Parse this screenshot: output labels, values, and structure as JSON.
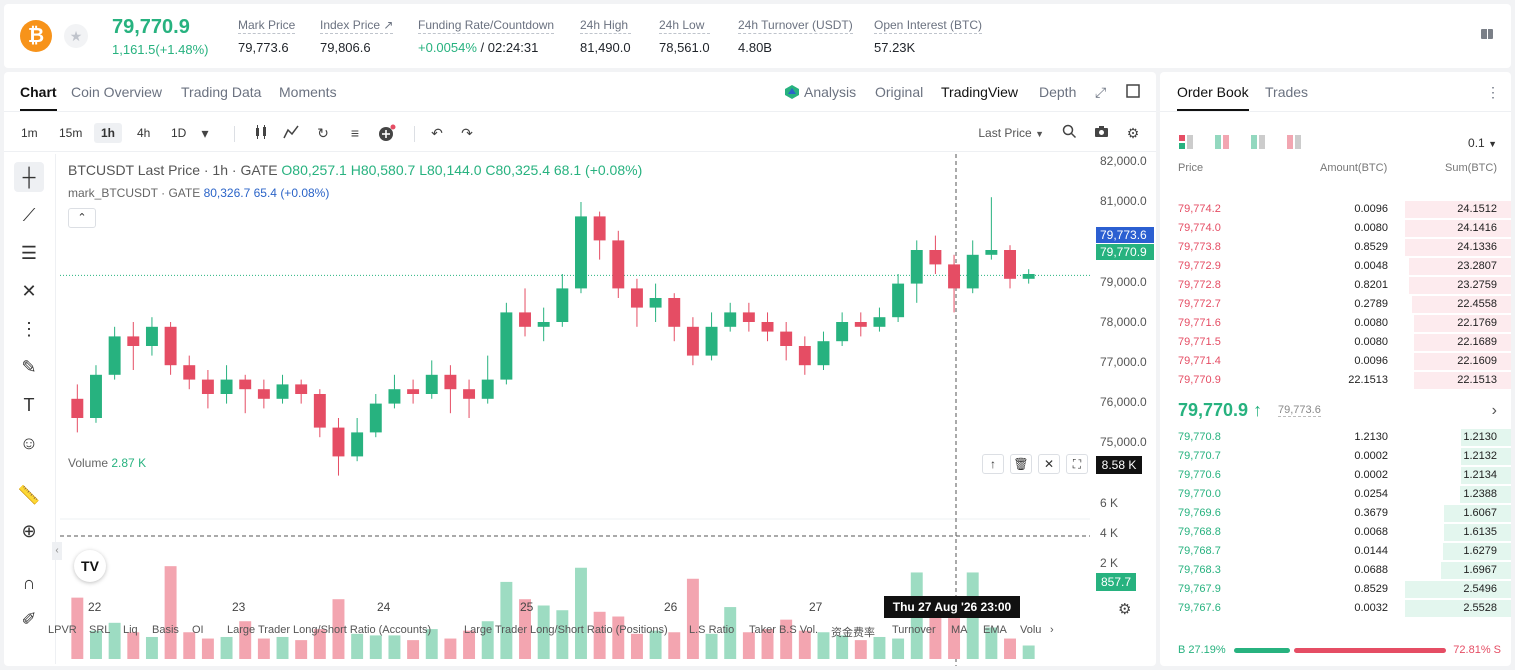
{
  "header": {
    "coin_icon": "bitcoin-icon",
    "last_price": "79,770.9",
    "change": "1,161.5(+1.48%)",
    "stats": [
      {
        "label": "Mark Price",
        "value": "79,773.6"
      },
      {
        "label": "Index Price ↗",
        "value": "79,806.6"
      },
      {
        "label": "Funding Rate/Countdown",
        "value_green": "+0.0054%",
        "value": " / 02:24:31"
      },
      {
        "label": "24h High",
        "value": "81,490.0"
      },
      {
        "label": "24h Low",
        "value": "78,561.0"
      },
      {
        "label": "24h Turnover (USDT)",
        "value": "4.80B"
      },
      {
        "label": "Open Interest (BTC)",
        "value": "57.23K"
      }
    ]
  },
  "chart_tabs": [
    "Chart",
    "Coin Overview",
    "Trading Data",
    "Moments"
  ],
  "view_modes": [
    "Analysis",
    "Original",
    "TradingView",
    "Depth"
  ],
  "timeframes": [
    "1m",
    "15m",
    "1h",
    "4h",
    "1D"
  ],
  "price_type": "Last Price",
  "legend": {
    "symbol": "BTCUSDT Last Price · 1h · GATE",
    "o": "O80,257.1",
    "h": "H80,580.7",
    "l": "L80,144.0",
    "c": "C80,325.4",
    "chg": "68.1 (+0.08%)",
    "mark": "mark_BTCUSDT · GATE",
    "mark_vals": "80,326.7  65.4 (+0.08%)"
  },
  "volume_legend": {
    "label": "Volume",
    "value": "2.87 K"
  },
  "price_axis": [
    "82,000.0",
    "81,000.0",
    "79,000.0",
    "78,000.0",
    "77,000.0",
    "76,000.0",
    "75,000.0"
  ],
  "volume_axis": [
    "6 K",
    "4 K",
    "2 K"
  ],
  "mark_tag": "79,773.6",
  "last_tag": "79,770.9",
  "vol_crosshair_tag": "8.58 K",
  "vol_current_tag": "857.7",
  "time_axis": [
    "22",
    "23",
    "24",
    "25",
    "26",
    "27"
  ],
  "crosshair_time": "Thu 27 Aug '26   23:00",
  "indicators": [
    "LPVR",
    "SRL",
    "Liq",
    "Basis",
    "OI",
    "Large Trader Long/Short Ratio (Accounts)",
    "Large Trader Long/Short Ratio (Positions)",
    "L.S Ratio",
    "Taker B.S Vol.",
    "资金费率",
    "Turnover",
    "MA",
    "EMA",
    "Volu"
  ],
  "chart_data": {
    "type": "candlestick",
    "ylim": [
      74800,
      82300
    ],
    "candles": [
      [
        77200,
        76800,
        77500,
        76500
      ],
      [
        76800,
        77700,
        77900,
        76700
      ],
      [
        77700,
        78500,
        78700,
        77600
      ],
      [
        78500,
        78300,
        78800,
        77800
      ],
      [
        78300,
        78700,
        78900,
        78100
      ],
      [
        78700,
        77900,
        78800,
        77700
      ],
      [
        77900,
        77600,
        78100,
        77400
      ],
      [
        77600,
        77300,
        77800,
        77000
      ],
      [
        77300,
        77600,
        77900,
        77100
      ],
      [
        77600,
        77400,
        77700,
        76900
      ],
      [
        77400,
        77200,
        77600,
        77000
      ],
      [
        77200,
        77500,
        77700,
        77100
      ],
      [
        77500,
        77300,
        77600,
        77100
      ],
      [
        77300,
        76600,
        77400,
        76400
      ],
      [
        76600,
        76000,
        76800,
        75600
      ],
      [
        76000,
        76500,
        76800,
        75900
      ],
      [
        76500,
        77100,
        77300,
        76400
      ],
      [
        77100,
        77400,
        77700,
        77000
      ],
      [
        77400,
        77300,
        77600,
        77100
      ],
      [
        77300,
        77700,
        78000,
        77200
      ],
      [
        77700,
        77400,
        77900,
        76900
      ],
      [
        77400,
        77200,
        77600,
        76800
      ],
      [
        77200,
        77600,
        78100,
        77100
      ],
      [
        77600,
        79000,
        79200,
        77500
      ],
      [
        79000,
        78700,
        79500,
        78500
      ],
      [
        78700,
        78800,
        79100,
        78400
      ],
      [
        78800,
        79500,
        79800,
        78700
      ],
      [
        79500,
        81000,
        81300,
        79400
      ],
      [
        81000,
        80500,
        81100,
        80100
      ],
      [
        80500,
        79500,
        80700,
        79300
      ],
      [
        79500,
        79100,
        79700,
        78700
      ],
      [
        79100,
        79300,
        79600,
        78800
      ],
      [
        79300,
        78700,
        79400,
        78400
      ],
      [
        78700,
        78100,
        78900,
        77900
      ],
      [
        78100,
        78700,
        79000,
        78000
      ],
      [
        78700,
        79000,
        79200,
        78600
      ],
      [
        79000,
        78800,
        79200,
        78600
      ],
      [
        78800,
        78600,
        79000,
        78400
      ],
      [
        78600,
        78300,
        78800,
        78000
      ],
      [
        78300,
        77900,
        78500,
        77700
      ],
      [
        77900,
        78400,
        78600,
        77800
      ],
      [
        78400,
        78800,
        79000,
        78300
      ],
      [
        78800,
        78700,
        79000,
        78500
      ],
      [
        78700,
        78900,
        79100,
        78600
      ],
      [
        78900,
        79600,
        79800,
        78800
      ],
      [
        79600,
        80300,
        80500,
        79200
      ],
      [
        80300,
        80000,
        80600,
        79800
      ],
      [
        80000,
        79500,
        80200,
        79000
      ],
      [
        79500,
        80200,
        80500,
        79400
      ],
      [
        80200,
        80300,
        81400,
        80100
      ],
      [
        80300,
        79700,
        80400,
        79500
      ],
      [
        79700,
        79800,
        79900,
        79600
      ]
    ],
    "volume": [
      3900,
      1800,
      2300,
      1700,
      1400,
      5900,
      1700,
      1300,
      1400,
      2400,
      1300,
      1400,
      1200,
      1900,
      3800,
      1600,
      1500,
      1500,
      1200,
      1900,
      1300,
      1800,
      2400,
      4900,
      3800,
      3400,
      3100,
      5800,
      3000,
      2700,
      1600,
      1800,
      1700,
      5100,
      1600,
      3300,
      1700,
      1900,
      2500,
      1800,
      1700,
      1500,
      1200,
      1400,
      1300,
      5500,
      3800,
      2600,
      5500,
      2000,
      1300,
      857.7
    ],
    "volume_ylim": [
      0,
      8580
    ]
  },
  "orderbook": {
    "tabs": [
      "Order Book",
      "Trades"
    ],
    "precision": "0.1",
    "headers": [
      "Price",
      "Amount(BTC)",
      "Sum(BTC)"
    ],
    "asks": [
      {
        "price": "79,774.2",
        "amount": "0.0096",
        "sum": "24.1512"
      },
      {
        "price": "79,774.0",
        "amount": "0.0080",
        "sum": "24.1416"
      },
      {
        "price": "79,773.8",
        "amount": "0.8529",
        "sum": "24.1336"
      },
      {
        "price": "79,772.9",
        "amount": "0.0048",
        "sum": "23.2807"
      },
      {
        "price": "79,772.8",
        "amount": "0.8201",
        "sum": "23.2759"
      },
      {
        "price": "79,772.7",
        "amount": "0.2789",
        "sum": "22.4558"
      },
      {
        "price": "79,771.6",
        "amount": "0.0080",
        "sum": "22.1769"
      },
      {
        "price": "79,771.5",
        "amount": "0.0080",
        "sum": "22.1689"
      },
      {
        "price": "79,771.4",
        "amount": "0.0096",
        "sum": "22.1609"
      },
      {
        "price": "79,770.9",
        "amount": "22.1513",
        "sum": "22.1513"
      }
    ],
    "mid_price": "79,770.9 ↑",
    "mid_mark": "79,773.6",
    "bids": [
      {
        "price": "79,770.8",
        "amount": "1.2130",
        "sum": "1.2130"
      },
      {
        "price": "79,770.7",
        "amount": "0.0002",
        "sum": "1.2132"
      },
      {
        "price": "79,770.6",
        "amount": "0.0002",
        "sum": "1.2134"
      },
      {
        "price": "79,770.0",
        "amount": "0.0254",
        "sum": "1.2388"
      },
      {
        "price": "79,769.6",
        "amount": "0.3679",
        "sum": "1.6067"
      },
      {
        "price": "79,768.8",
        "amount": "0.0068",
        "sum": "1.6135"
      },
      {
        "price": "79,768.7",
        "amount": "0.0144",
        "sum": "1.6279"
      },
      {
        "price": "79,768.3",
        "amount": "0.0688",
        "sum": "1.6967"
      },
      {
        "price": "79,767.9",
        "amount": "0.8529",
        "sum": "2.5496"
      },
      {
        "price": "79,767.6",
        "amount": "0.0032",
        "sum": "2.5528"
      }
    ],
    "buy_ratio": "B 27.19%",
    "sell_ratio": "72.81% S",
    "buy_fraction": 0.2719
  },
  "colors": {
    "up": "#27b27f",
    "down": "#e54d64",
    "brand": "#f7931a"
  }
}
